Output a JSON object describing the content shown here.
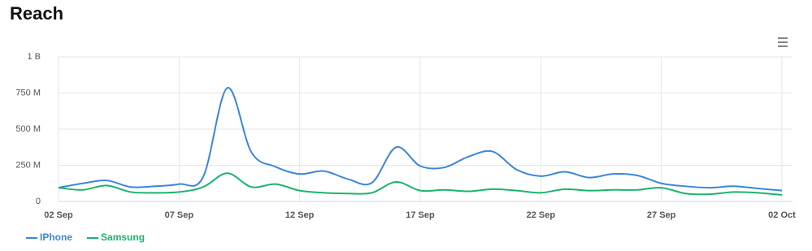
{
  "chart_data": {
    "type": "line",
    "title": "Reach",
    "categories": [
      "02 Sep",
      null,
      null,
      null,
      null,
      "07 Sep",
      null,
      null,
      null,
      null,
      "12 Sep",
      null,
      null,
      null,
      null,
      "17 Sep",
      null,
      null,
      null,
      null,
      "22 Sep",
      null,
      null,
      null,
      null,
      "27 Sep",
      null,
      null,
      null,
      null,
      "02 Oct"
    ],
    "series": [
      {
        "name": "IPhone",
        "color": "#3b86dc",
        "values": [
          95000000,
          125000000,
          145000000,
          100000000,
          105000000,
          120000000,
          170000000,
          785000000,
          340000000,
          240000000,
          190000000,
          210000000,
          155000000,
          130000000,
          375000000,
          245000000,
          235000000,
          310000000,
          345000000,
          220000000,
          175000000,
          205000000,
          165000000,
          190000000,
          180000000,
          125000000,
          105000000,
          95000000,
          105000000,
          90000000,
          75000000
        ]
      },
      {
        "name": "Samsung",
        "color": "#1bb46e",
        "values": [
          95000000,
          80000000,
          110000000,
          65000000,
          60000000,
          65000000,
          100000000,
          195000000,
          100000000,
          120000000,
          75000000,
          60000000,
          55000000,
          60000000,
          135000000,
          75000000,
          80000000,
          70000000,
          85000000,
          75000000,
          60000000,
          85000000,
          75000000,
          80000000,
          80000000,
          95000000,
          55000000,
          50000000,
          65000000,
          60000000,
          45000000
        ]
      }
    ],
    "ylim": [
      0,
      1000000000
    ],
    "yticks": [
      0,
      {
        "value": 250000000,
        "label": "250 M"
      },
      {
        "value": 500000000,
        "label": "500 M"
      },
      {
        "value": 750000000,
        "label": "750 M"
      },
      {
        "value": 1000000000,
        "label": "1 B"
      }
    ],
    "grid": true,
    "legend": "bottom-left"
  }
}
